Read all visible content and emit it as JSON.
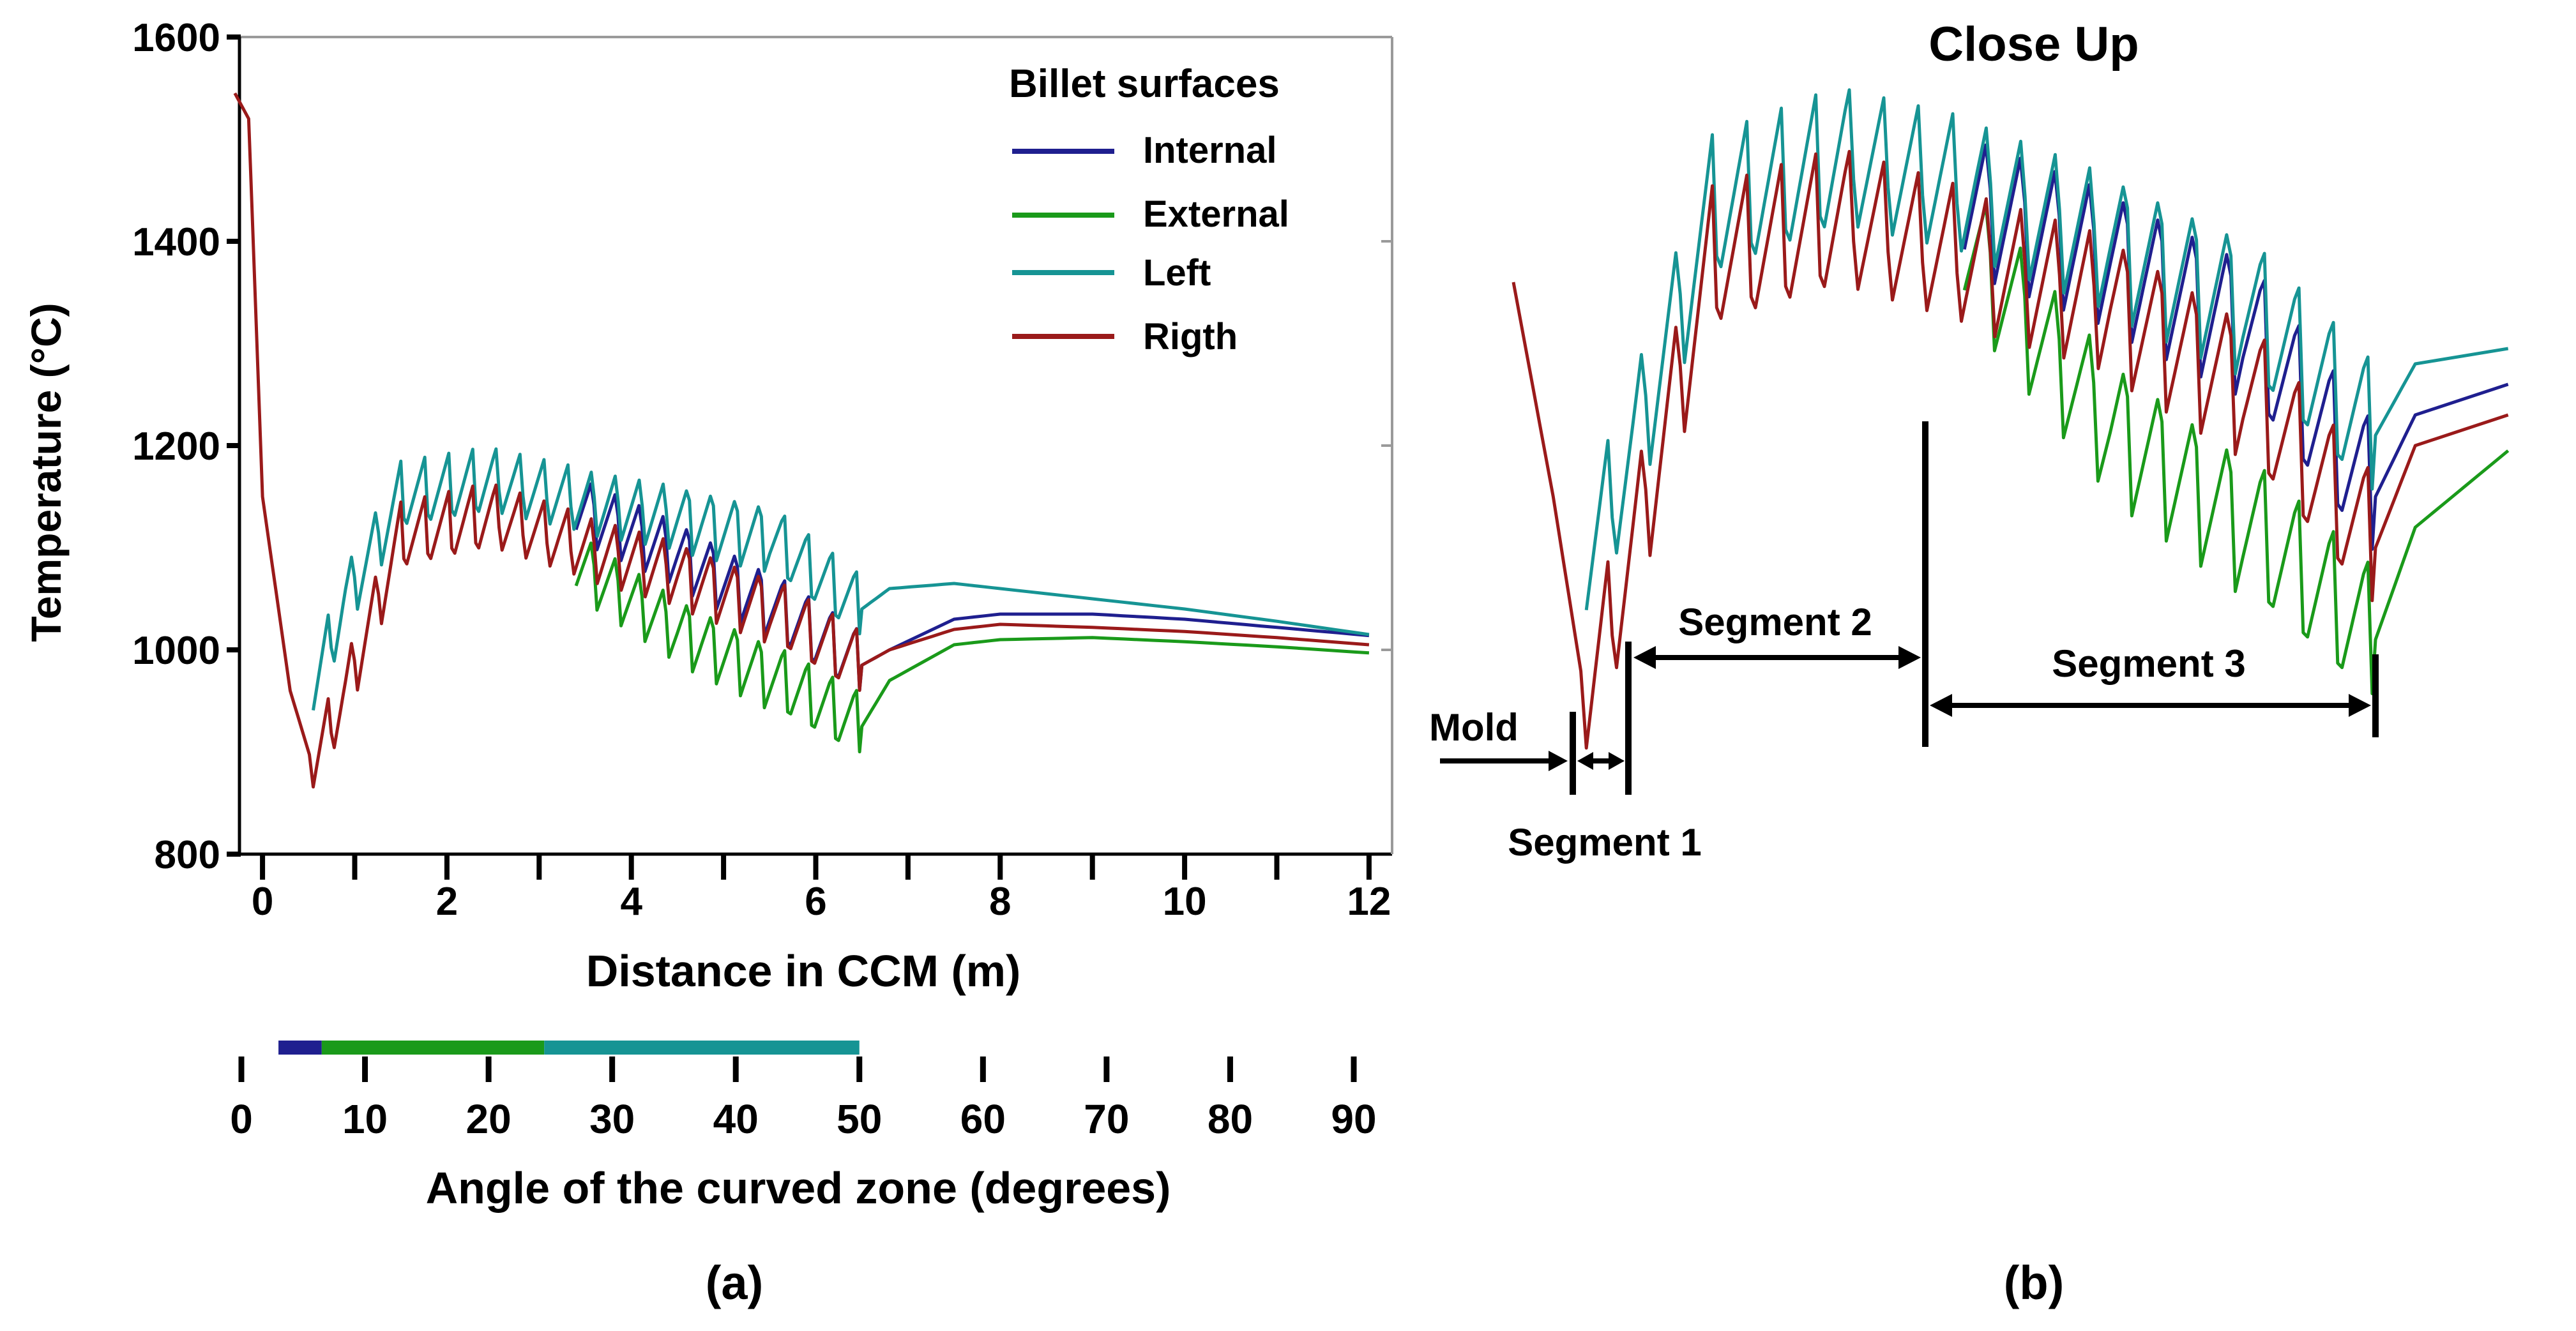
{
  "colors": {
    "internal": "#1f1f8f",
    "external": "#1a9a1a",
    "left": "#169494",
    "right": "#9a1a1a",
    "axis": "#000000",
    "frame": "#9a9a9a"
  },
  "chart_data": [
    {
      "panel": "(a)",
      "type": "line",
      "xlabel": "Distance in CCM (m)",
      "ylabel": "Temperature (°C)",
      "xlim": [
        -0.25,
        12.25
      ],
      "ylim": [
        800,
        1600
      ],
      "xticks": [
        0,
        2,
        4,
        6,
        8,
        10,
        12
      ],
      "yticks": [
        800,
        1000,
        1200,
        1400,
        1600
      ],
      "grid": false,
      "legend": {
        "title": "Billet surfaces",
        "position": "top-right",
        "entries": [
          "Internal",
          "External",
          "Left",
          "Rigth"
        ]
      },
      "series": [
        {
          "name": "Internal",
          "key": "internal",
          "x": [
            3.4,
            4.5,
            5.5,
            6.5,
            6.8,
            7.5,
            8.0,
            9.0,
            10.0,
            11.0,
            12.0
          ],
          "y": [
            1140,
            1095,
            1045,
            985,
            1000,
            1030,
            1035,
            1035,
            1030,
            1022,
            1014
          ]
        },
        {
          "name": "External",
          "key": "external",
          "x": [
            3.4,
            4.5,
            5.5,
            6.5,
            6.8,
            7.5,
            8.0,
            9.0,
            10.0,
            11.0,
            12.0
          ],
          "y": [
            1085,
            1020,
            975,
            925,
            970,
            1005,
            1010,
            1012,
            1008,
            1003,
            997
          ]
        },
        {
          "name": "Left",
          "key": "left",
          "x": [
            0.55,
            0.9,
            1.5,
            2.5,
            3.5,
            4.5,
            5.5,
            6.5,
            6.8,
            7.5,
            8.0,
            9.0,
            10.0,
            11.0,
            12.0
          ],
          "y": [
            960,
            1050,
            1150,
            1165,
            1145,
            1130,
            1110,
            1040,
            1060,
            1065,
            1060,
            1050,
            1040,
            1028,
            1015
          ]
        },
        {
          "name": "Rigth",
          "key": "right",
          "x": [
            -0.3,
            -0.15,
            0.0,
            0.3,
            0.55,
            0.9,
            1.5,
            2.5,
            3.5,
            4.5,
            5.5,
            6.5,
            6.8,
            7.5,
            8.0,
            9.0,
            10.0,
            11.0,
            12.0
          ],
          "y": [
            1545,
            1520,
            1150,
            960,
            885,
            960,
            1110,
            1130,
            1100,
            1075,
            1040,
            985,
            1000,
            1020,
            1025,
            1022,
            1018,
            1012,
            1005
          ]
        }
      ],
      "angle_axis": {
        "label": "Angle of the curved zone (degrees)",
        "ticks": [
          "0",
          "10",
          "20",
          "30",
          "40",
          "50",
          "60",
          "70",
          "80",
          "90"
        ],
        "bands": [
          {
            "from": 3,
            "to": 6.5,
            "key": "internal"
          },
          {
            "from": 6.5,
            "to": 24.5,
            "key": "external"
          },
          {
            "from": 24.5,
            "to": 50,
            "key": "left"
          }
        ]
      }
    },
    {
      "panel": "(b)",
      "type": "line",
      "title": "Close Up",
      "annotations": [
        "Mold",
        "Segment 1",
        "Segment 2",
        "Segment 3"
      ],
      "ylim": [
        800,
        1600
      ],
      "series": [
        {
          "name": "Internal",
          "key": "internal",
          "x": [
            3.4,
            4.5,
            5.5,
            6.5,
            6.8,
            7.5
          ],
          "y": [
            1440,
            1385,
            1320,
            1150,
            1230,
            1260
          ]
        },
        {
          "name": "External",
          "key": "external",
          "x": [
            3.4,
            4.5,
            5.5,
            6.5,
            6.8,
            7.5
          ],
          "y": [
            1400,
            1220,
            1125,
            1010,
            1120,
            1195
          ]
        },
        {
          "name": "Left",
          "key": "left",
          "x": [
            0.55,
            0.9,
            1.5,
            2.5,
            3.5,
            4.5,
            5.5,
            6.5,
            6.8,
            7.5
          ],
          "y": [
            1080,
            1200,
            1430,
            1480,
            1450,
            1400,
            1340,
            1210,
            1280,
            1295
          ]
        },
        {
          "name": "Rigth",
          "key": "right",
          "x": [
            0.0,
            0.3,
            0.55,
            0.9,
            1.5,
            2.5,
            3.5,
            4.5,
            5.5,
            6.5,
            6.8,
            7.5
          ],
          "y": [
            1360,
            1150,
            945,
            1100,
            1380,
            1420,
            1380,
            1340,
            1260,
            1100,
            1200,
            1230
          ]
        }
      ]
    }
  ],
  "panel_labels": {
    "a": "(a)",
    "b": "(b)"
  }
}
